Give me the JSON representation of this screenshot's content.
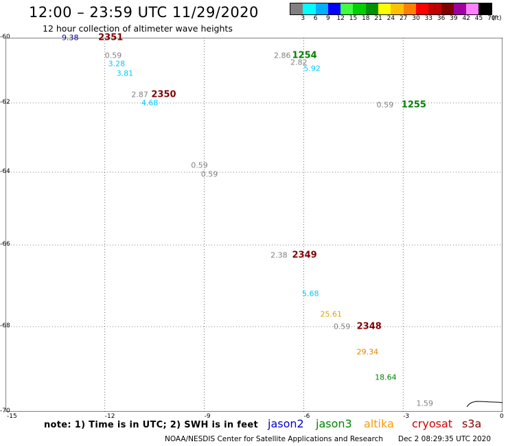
{
  "header": {
    "title": "12:00 – 23:59 UTC 11/29/2020",
    "subtitle": "12 hour collection of altimeter wave heights"
  },
  "color_scale": {
    "colors": [
      "#808080",
      "#00ffff",
      "#00b0ff",
      "#0000ff",
      "#40ff40",
      "#00d000",
      "#009000",
      "#ffff00",
      "#ffc000",
      "#ff8000",
      "#ff0000",
      "#c00000",
      "#800000",
      "#a000a0",
      "#ff80ff",
      "#000000"
    ],
    "labels": [
      "3",
      "6",
      "9",
      "12",
      "15",
      "18",
      "21",
      "24",
      "27",
      "30",
      "33",
      "36",
      "39",
      "42",
      "45",
      "70"
    ],
    "unit": "(ft)"
  },
  "axes": {
    "lat_ticks": [
      {
        "label": "-60",
        "value": -60
      },
      {
        "label": "-62",
        "value": -62
      },
      {
        "label": "-64",
        "value": -64
      },
      {
        "label": "-66",
        "value": -66
      },
      {
        "label": "-68",
        "value": -68
      },
      {
        "label": "-70",
        "value": -70
      }
    ],
    "lon_ticks": [
      {
        "label": "-15",
        "value": -15
      },
      {
        "label": "-12",
        "value": -12
      },
      {
        "label": "-9",
        "value": -9
      },
      {
        "label": "-6",
        "value": -6
      },
      {
        "label": "-3",
        "value": -3
      },
      {
        "label": "0",
        "value": 0
      }
    ]
  },
  "observations": [
    {
      "text": "9.38",
      "color": "#000090",
      "lon": -13.3,
      "lat": -60.0
    },
    {
      "text": "0.59",
      "color": "#808080",
      "lon": -12.0,
      "lat": -60.55
    },
    {
      "text": "3.28",
      "color": "#00c8ff",
      "lon": -11.9,
      "lat": -60.8
    },
    {
      "text": "3.81",
      "color": "#00c8ff",
      "lon": -11.65,
      "lat": -61.1
    },
    {
      "text": "2.87",
      "color": "#808080",
      "lon": -11.2,
      "lat": -61.75
    },
    {
      "text": "4.68",
      "color": "#00c8ff",
      "lon": -10.9,
      "lat": -62.0
    },
    {
      "text": "2.86",
      "color": "#808080",
      "lon": -6.9,
      "lat": -60.55
    },
    {
      "text": "2.82",
      "color": "#808080",
      "lon": -6.4,
      "lat": -60.75
    },
    {
      "text": "5.92",
      "color": "#00c8ff",
      "lon": -6.0,
      "lat": -60.95
    },
    {
      "text": "0.59",
      "color": "#808080",
      "lon": -3.8,
      "lat": -62.05
    },
    {
      "text": "0.59",
      "color": "#808080",
      "lon": -9.4,
      "lat": -63.8
    },
    {
      "text": "0.59",
      "color": "#808080",
      "lon": -9.1,
      "lat": -64.05
    },
    {
      "text": "2.38",
      "color": "#808080",
      "lon": -7.0,
      "lat": -66.25
    },
    {
      "text": "5.68",
      "color": "#00c8ff",
      "lon": -6.05,
      "lat": -67.2
    },
    {
      "text": "25.61",
      "color": "#e0a000",
      "lon": -5.5,
      "lat": -67.7
    },
    {
      "text": "0.59",
      "color": "#808080",
      "lon": -5.1,
      "lat": -68.0
    },
    {
      "text": "29.34",
      "color": "#e08000",
      "lon": -4.4,
      "lat": -68.6
    },
    {
      "text": "18.64",
      "color": "#008000",
      "lon": -3.85,
      "lat": -69.2
    },
    {
      "text": "1.59",
      "color": "#808080",
      "lon": -2.6,
      "lat": -69.8
    }
  ],
  "passes": [
    {
      "text": "2351",
      "color": "#800000",
      "lon": -12.2,
      "lat": -60.0
    },
    {
      "text": "2350",
      "color": "#800000",
      "lon": -10.6,
      "lat": -61.75
    },
    {
      "text": "1254",
      "color": "#008000",
      "lon": -6.35,
      "lat": -60.55
    },
    {
      "text": "1255",
      "color": "#008000",
      "lon": -3.05,
      "lat": -62.05
    },
    {
      "text": "2349",
      "color": "#800000",
      "lon": -6.35,
      "lat": -66.25
    },
    {
      "text": "2348",
      "color": "#800000",
      "lon": -4.4,
      "lat": -68.0
    }
  ],
  "note": "note: 1) Time is in UTC; 2) SWH is in feet",
  "legend": [
    {
      "name": "jason2",
      "color": "#0000cc"
    },
    {
      "name": "jason3",
      "color": "#008000"
    },
    {
      "name": "altika",
      "color": "#ff9900"
    },
    {
      "name": "cryosat",
      "color": "#cc0000"
    },
    {
      "name": "s3a",
      "color": "#800000"
    }
  ],
  "footer": {
    "credit": "NOAA/NESDIS Center for Satellite Applications and Research",
    "timestamp": "Dec  2 08:29:35 UTC 2020"
  }
}
